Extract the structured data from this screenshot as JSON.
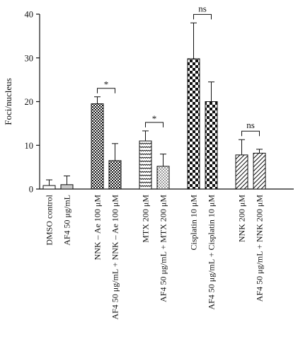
{
  "chart_data": {
    "type": "bar",
    "ylabel": "Foci/nucleus",
    "ylim": [
      0,
      40
    ],
    "yticks": [
      0,
      10,
      20,
      30,
      40
    ],
    "colors": {
      "ink": "#111111",
      "background": "#ffffff"
    },
    "categories": [
      "DMSO control",
      "AF4 50 μg/mL",
      "NNK – Ae 100 μM",
      "AF4 50 μg/mL + NNK – Ae 100 μM",
      "MTX 200 μM",
      "AF4 50 μg/mL + MTX 200 μM",
      "Cisplatin 10 μM",
      "AF4 50 μg/mL + Cisplatin 10 μM",
      "NNK 200 μM",
      "AF4 50 μg/mL + NNK 200 μM"
    ],
    "values": [
      0.8,
      1.0,
      19.5,
      6.5,
      11.0,
      5.2,
      29.8,
      20.0,
      7.8,
      8.2
    ],
    "errors": [
      1.3,
      2.0,
      1.6,
      3.9,
      2.3,
      2.8,
      8.2,
      4.5,
      3.5,
      0.9
    ],
    "patterns": [
      "white",
      "gray",
      "checker",
      "checker",
      "wavy",
      "dots",
      "bigchecker",
      "bigchecker",
      "hatch",
      "hatch"
    ],
    "groups": [
      [
        0,
        1
      ],
      [
        2,
        3
      ],
      [
        4,
        5
      ],
      [
        6,
        7
      ],
      [
        8,
        9
      ]
    ],
    "significance": [
      {
        "bars": [
          2,
          3
        ],
        "label": "*"
      },
      {
        "bars": [
          4,
          5
        ],
        "label": "*"
      },
      {
        "bars": [
          6,
          7
        ],
        "label": "ns"
      },
      {
        "bars": [
          8,
          9
        ],
        "label": "ns"
      }
    ]
  }
}
